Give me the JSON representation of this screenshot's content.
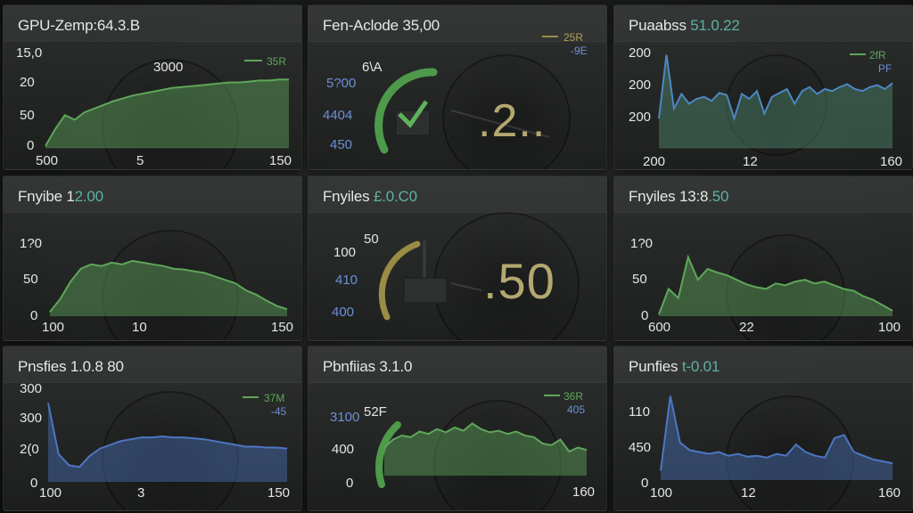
{
  "colors": {
    "green": "#5fa65a",
    "blue": "#4d76c4",
    "olive": "#9a8c45",
    "text": "#e4e6e2",
    "accent_teal": "#5fb0a4"
  },
  "panels": [
    {
      "title": "GPU-Zemp:64.3.B",
      "y_ticks": [
        "15,0",
        "20",
        "50",
        "0"
      ],
      "x_ticks": [
        "500",
        "5",
        "150"
      ],
      "annotation": "3000",
      "legend": [
        {
          "label": "35R",
          "color": "green"
        }
      ],
      "chart_data": {
        "type": "area",
        "color": "green",
        "ylim": [
          0,
          100
        ],
        "values": [
          2,
          20,
          35,
          30,
          38,
          42,
          46,
          50,
          53,
          56,
          58,
          60,
          62,
          64,
          65,
          66,
          67,
          68,
          69,
          70,
          70,
          71,
          72,
          72,
          73,
          73
        ]
      }
    },
    {
      "title": "Fen-Aclode 3",
      "title_value": "5,00",
      "gauge_label": "6\\A",
      "y_labels": [
        "5?00",
        "4404",
        "450"
      ],
      "big_value": ".2..",
      "legend": [
        {
          "label": "25R",
          "color": "olive"
        },
        {
          "label": "-9E",
          "color": "blue"
        }
      ],
      "gauge": {
        "color": "green",
        "icon": "check-icon",
        "fraction": 0.42
      }
    },
    {
      "title": "Puaabss",
      "title_value": "51.0.22",
      "y_ticks": [
        "200",
        "200",
        "200"
      ],
      "x_ticks": [
        "200",
        "12",
        "160"
      ],
      "legend": [
        {
          "label": "2fR",
          "color": "green"
        },
        {
          "label": "PF",
          "color": "blue"
        }
      ],
      "chart_data": {
        "type": "area",
        "color": "teal",
        "ylim": [
          0,
          100
        ],
        "values": [
          30,
          95,
          40,
          55,
          45,
          50,
          52,
          48,
          56,
          54,
          30,
          55,
          50,
          58,
          35,
          52,
          56,
          60,
          45,
          58,
          62,
          55,
          60,
          58,
          62,
          65,
          60,
          58,
          62,
          64,
          60,
          66
        ]
      }
    },
    {
      "title": "Fnyibe 1",
      "title_value": "2.00",
      "y_ticks": [
        "1?0",
        "50",
        "0"
      ],
      "x_ticks": [
        "100",
        "10",
        "150"
      ],
      "chart_data": {
        "type": "area",
        "color": "green",
        "ylim": [
          0,
          100
        ],
        "values": [
          5,
          20,
          40,
          55,
          60,
          58,
          62,
          60,
          64,
          62,
          60,
          58,
          55,
          54,
          52,
          50,
          46,
          42,
          38,
          30,
          25,
          18,
          12,
          8
        ]
      }
    },
    {
      "title": "Fnyiles",
      "title_value": "£.0.C0",
      "gauge_label": "50",
      "y_labels": [
        "100",
        "410",
        "400"
      ],
      "big_value": ".50",
      "gauge": {
        "color": "olive",
        "icon": "box-icon",
        "fraction": 0.3
      }
    },
    {
      "title": "Fnyiles 13:8",
      "title_value": ".50",
      "y_ticks": [
        "1?0",
        "50",
        "0"
      ],
      "x_ticks": [
        "600",
        "22",
        "100"
      ],
      "chart_data": {
        "type": "area",
        "color": "green",
        "ylim": [
          0,
          100
        ],
        "values": [
          2,
          30,
          20,
          65,
          40,
          52,
          48,
          45,
          40,
          35,
          32,
          30,
          36,
          34,
          38,
          40,
          36,
          38,
          34,
          30,
          28,
          22,
          18,
          12,
          6
        ]
      }
    },
    {
      "title": "Pnsfies 1.0.8 80",
      "y_ticks": [
        "300",
        "300",
        "2(0",
        "0"
      ],
      "x_ticks": [
        "100",
        "3",
        "150"
      ],
      "legend": [
        {
          "label": "37M",
          "color": "green"
        },
        {
          "label": "-45",
          "color": "blue"
        }
      ],
      "chart_data": {
        "type": "area",
        "color": "blue",
        "ylim": [
          0,
          100
        ],
        "values": [
          85,
          30,
          18,
          16,
          28,
          36,
          40,
          44,
          46,
          48,
          48,
          49,
          48,
          48,
          47,
          46,
          44,
          42,
          40,
          38,
          38,
          37,
          37,
          36
        ]
      }
    },
    {
      "title": "Pbnfiias 3.1.0",
      "gauge_label": "52F",
      "y_labels": [
        "3100",
        "400",
        "0"
      ],
      "x_ticks": [
        "160"
      ],
      "legend": [
        {
          "label": "36R",
          "color": "green"
        },
        {
          "label": "405",
          "color": "blue"
        }
      ],
      "gauge": {
        "color": "green",
        "fraction": 0.35
      },
      "chart_data": {
        "type": "area",
        "color": "green",
        "ylim": [
          0,
          100
        ],
        "values": [
          35,
          45,
          50,
          48,
          55,
          52,
          58,
          54,
          60,
          56,
          65,
          58,
          54,
          56,
          52,
          55,
          50,
          48,
          40,
          38,
          45,
          30,
          35,
          32
        ]
      }
    },
    {
      "title": "Punfies",
      "title_value": "t-0.01",
      "y_ticks": [
        "110",
        "450",
        "0"
      ],
      "x_ticks": [
        "100",
        "12",
        "160"
      ],
      "chart_data": {
        "type": "area",
        "color": "blue",
        "ylim": [
          0,
          100
        ],
        "values": [
          10,
          90,
          40,
          32,
          30,
          28,
          30,
          26,
          28,
          25,
          26,
          24,
          28,
          26,
          38,
          30,
          26,
          24,
          45,
          48,
          30,
          26,
          22,
          20,
          18
        ]
      }
    }
  ]
}
